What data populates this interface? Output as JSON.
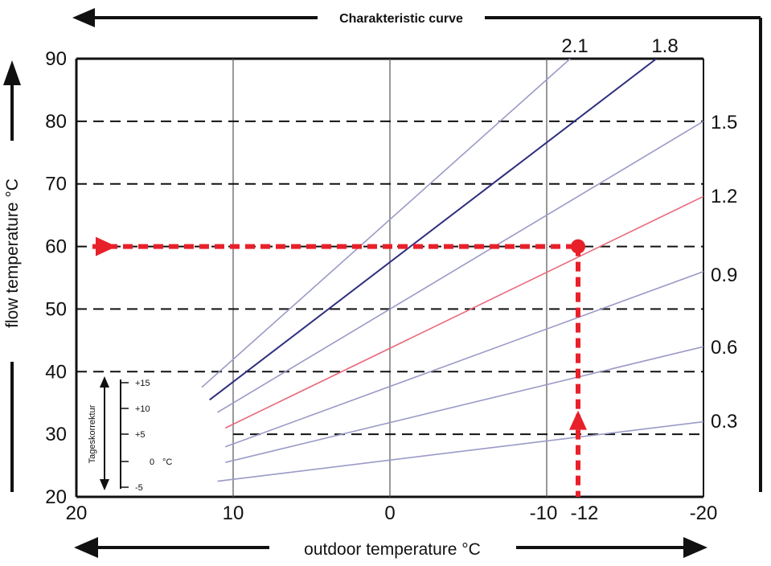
{
  "chart_data": {
    "type": "line",
    "title": "Charakteristic curve",
    "xlabel": "outdoor temperature °C",
    "ylabel": "flow temperature  °C",
    "xlim": [
      20,
      -20
    ],
    "ylim": [
      20,
      90
    ],
    "x_ticks": [
      "20",
      "10",
      "0",
      "-10",
      "-12",
      "-20"
    ],
    "x_tick_values": [
      20,
      10,
      0,
      -10,
      -12,
      -20
    ],
    "y_ticks": [
      "20",
      "30",
      "40",
      "50",
      "60",
      "70",
      "80",
      "90"
    ],
    "y_tick_values": [
      20,
      30,
      40,
      50,
      60,
      70,
      80,
      90
    ],
    "dashed_gridlines_y": [
      30,
      40,
      50,
      60,
      70,
      80
    ],
    "solid_gridlines_x": [
      10,
      0,
      -10
    ],
    "curves": [
      {
        "label": "2.1",
        "x": [
          12,
          -11.5
        ],
        "y": [
          37.5,
          90
        ],
        "color": "#9a9ac8"
      },
      {
        "label": "1.8",
        "x": [
          11.5,
          -17
        ],
        "y": [
          35.5,
          90
        ],
        "color": "#2e2e7e"
      },
      {
        "label": "1.5",
        "x": [
          11,
          -20
        ],
        "y": [
          33.5,
          80
        ],
        "color": "#9a9ac8"
      },
      {
        "label": "1.2",
        "x": [
          10.5,
          -20
        ],
        "y": [
          31,
          68
        ],
        "color": "#e86a7c"
      },
      {
        "label": "0.9",
        "x": [
          10.5,
          -20
        ],
        "y": [
          28,
          56
        ],
        "color": "#9a9ac8"
      },
      {
        "label": "0.6",
        "x": [
          10.5,
          -20
        ],
        "y": [
          25.5,
          44
        ],
        "color": "#9a9ac8"
      },
      {
        "label": "0.3",
        "x": [
          11,
          -20
        ],
        "y": [
          22.5,
          32
        ],
        "color": "#9a9ac8"
      }
    ],
    "curve_labels_top": [
      "2.1",
      "1.8"
    ],
    "curve_labels_right": [
      "1.5",
      "1.2",
      "0.9",
      "0.6",
      "0.3"
    ],
    "example": {
      "outdoor_temperature": -12,
      "flow_temperature": 60,
      "color": "#e8202a"
    },
    "day_correction": {
      "label": "Tageskorrektur",
      "unit": "°C",
      "ticks": [
        "+15",
        "+10",
        "+5",
        "0",
        "-5"
      ]
    }
  }
}
